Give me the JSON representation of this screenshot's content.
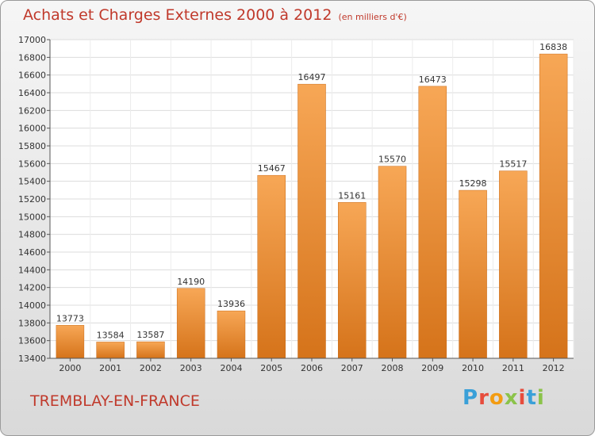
{
  "header": {
    "title": "Achats et Charges Externes 2000 à 2012",
    "subtitle": "(en milliers d'€)"
  },
  "footer": {
    "location": "TREMBLAY-EN-FRANCE",
    "logo": "Proxiti",
    "logo_colors": [
      "#3aa0d8",
      "#e74c3c",
      "#f39c12",
      "#8bc34a",
      "#e74c3c",
      "#3aa0d8",
      "#8bc34a"
    ]
  },
  "chart_data": {
    "type": "bar",
    "categories": [
      "2000",
      "2001",
      "2002",
      "2003",
      "2004",
      "2005",
      "2006",
      "2007",
      "2008",
      "2009",
      "2010",
      "2011",
      "2012"
    ],
    "values": [
      13773,
      13584,
      13587,
      14190,
      13936,
      15467,
      16497,
      15161,
      15570,
      16473,
      15298,
      15517,
      16838
    ],
    "ylim": [
      13400,
      17000
    ],
    "yticks": [
      13400,
      13600,
      13800,
      14000,
      14200,
      14400,
      14600,
      14800,
      15000,
      15200,
      15400,
      15600,
      15800,
      16000,
      16200,
      16400,
      16600,
      16800,
      17000
    ],
    "grid": true,
    "bar_color_top": "#f7a756",
    "bar_color_bottom": "#d5731a"
  }
}
